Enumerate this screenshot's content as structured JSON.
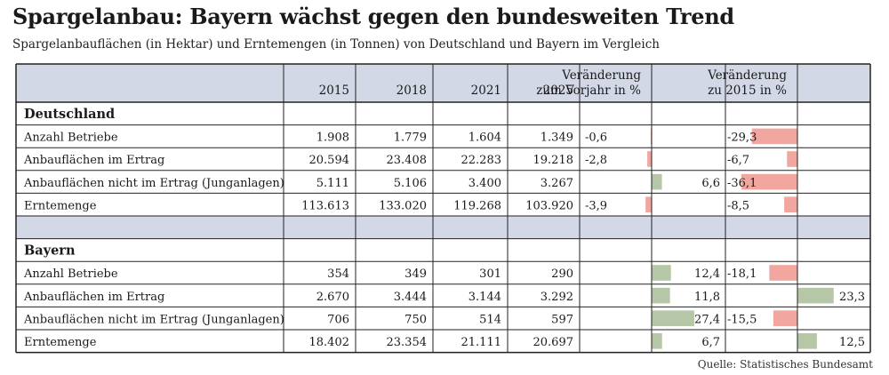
{
  "header": {
    "title": "Spargelanbau: Bayern wächst gegen den bundesweiten Trend",
    "subtitle": "Spargelanbauflächen (in Hektar) und Erntemengen (in Tonnen) von Deutschland und Bayern im Vergleich"
  },
  "source": "Quelle: Statistisches Bundesamt",
  "colors": {
    "header_bg": "#d3d8e6",
    "negative": "#f2a6a0",
    "positive": "#b5c7a6",
    "grid": "#222222"
  },
  "chart_data": {
    "type": "table",
    "columns": [
      "2015",
      "2018",
      "2021",
      "2025"
    ],
    "change_prev_label": [
      "Veränderung",
      "zum Vorjahr in %"
    ],
    "change_2015_label": [
      "Veränderung",
      "zu 2015 in %"
    ],
    "sections": [
      {
        "name": "Deutschland",
        "rows": [
          {
            "label": "Anzahl Betriebe",
            "values": [
              "1.908",
              "1.779",
              "1.604",
              "1.349"
            ],
            "change_prev": -0.6,
            "change_prev_text": "-0,6",
            "change_2015": -29.3,
            "change_2015_text": "-29,3"
          },
          {
            "label": "Anbauflächen im Ertrag",
            "values": [
              "20.594",
              "23.408",
              "22.283",
              "19.218"
            ],
            "change_prev": -2.8,
            "change_prev_text": "-2,8",
            "change_2015": -6.7,
            "change_2015_text": "-6,7"
          },
          {
            "label": "Anbauflächen nicht im Ertrag (Junganlagen)",
            "values": [
              "5.111",
              "5.106",
              "3.400",
              "3.267"
            ],
            "change_prev": 6.6,
            "change_prev_text": "6,6",
            "change_2015": -36.1,
            "change_2015_text": "-36,1"
          },
          {
            "label": "Erntemenge",
            "values": [
              "113.613",
              "133.020",
              "119.268",
              "103.920"
            ],
            "change_prev": -3.9,
            "change_prev_text": "-3,9",
            "change_2015": -8.5,
            "change_2015_text": "-8,5"
          }
        ]
      },
      {
        "name": "Bayern",
        "rows": [
          {
            "label": "Anzahl Betriebe",
            "values": [
              "354",
              "349",
              "301",
              "290"
            ],
            "change_prev": 12.4,
            "change_prev_text": "12,4",
            "change_2015": -18.1,
            "change_2015_text": "-18,1"
          },
          {
            "label": "Anbauflächen im Ertrag",
            "values": [
              "2.670",
              "3.444",
              "3.144",
              "3.292"
            ],
            "change_prev": 11.8,
            "change_prev_text": "11,8",
            "change_2015": 23.3,
            "change_2015_text": "23,3"
          },
          {
            "label": "Anbauflächen nicht im Ertrag (Junganlagen)",
            "values": [
              "706",
              "750",
              "514",
              "597"
            ],
            "change_prev": 27.4,
            "change_prev_text": "27,4",
            "change_2015": -15.5,
            "change_2015_text": "-15,5"
          },
          {
            "label": "Erntemenge",
            "values": [
              "18.402",
              "23.354",
              "21.111",
              "20.697"
            ],
            "change_prev": 6.7,
            "change_prev_text": "6,7",
            "change_2015": 12.5,
            "change_2015_text": "12,5"
          }
        ]
      }
    ]
  }
}
